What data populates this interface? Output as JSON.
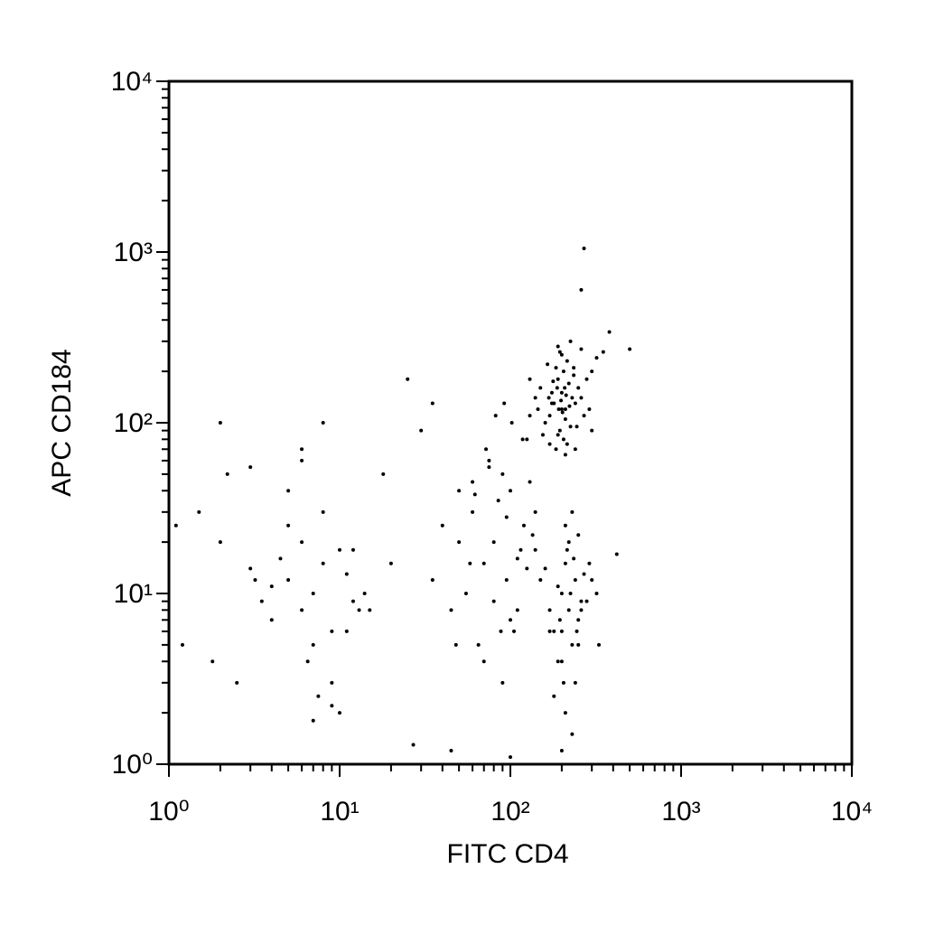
{
  "chart_data": {
    "type": "scatter",
    "x_label": "FITC CD4",
    "y_label": "APC CD184",
    "xscale": "log",
    "yscale": "log",
    "xlim": [
      1,
      10000
    ],
    "ylim": [
      1,
      10000
    ],
    "xticks": [
      {
        "value": 1,
        "label": "10⁰"
      },
      {
        "value": 10,
        "label": "10¹"
      },
      {
        "value": 100,
        "label": "10²"
      },
      {
        "value": 1000,
        "label": "10³"
      },
      {
        "value": 10000,
        "label": "10⁴"
      }
    ],
    "yticks": [
      {
        "value": 1,
        "label": "10⁰"
      },
      {
        "value": 10,
        "label": "10¹"
      },
      {
        "value": 100,
        "label": "10²"
      },
      {
        "value": 1000,
        "label": "10³"
      },
      {
        "value": 10000,
        "label": "10⁴"
      }
    ],
    "minor_ticks": true,
    "color": "#000000",
    "x": [
      200,
      180,
      220,
      210,
      190,
      170,
      230,
      250,
      160,
      205,
      195,
      215,
      185,
      240,
      175,
      225,
      200,
      210,
      190,
      260,
      150,
      145,
      280,
      270,
      165,
      235,
      198,
      188,
      212,
      222,
      178,
      202,
      245,
      155,
      290,
      140,
      300,
      320,
      130,
      260,
      205,
      215,
      185,
      195,
      225,
      175,
      235,
      168,
      208,
      192,
      350,
      380,
      130,
      125,
      300,
      240,
      170,
      210,
      190,
      200,
      200,
      220,
      240,
      180,
      260,
      210,
      230,
      190,
      250,
      270,
      170,
      200,
      215,
      245,
      225,
      160,
      280,
      205,
      235,
      195,
      300,
      210,
      230,
      250,
      190,
      220,
      240,
      260,
      180,
      200,
      150,
      170,
      140,
      320,
      330,
      290,
      210,
      230,
      250,
      200,
      60,
      80,
      100,
      70,
      90,
      55,
      120,
      110,
      75,
      85,
      65,
      95,
      130,
      105,
      50,
      45,
      140,
      115,
      70,
      90,
      60,
      80,
      100,
      125,
      35,
      40,
      50,
      75,
      95,
      110,
      88,
      72,
      58,
      135,
      48,
      62,
      102,
      118,
      82,
      92,
      5,
      7,
      8,
      6,
      10,
      4,
      9,
      12,
      3,
      6,
      7,
      5,
      8,
      11,
      4,
      3.5,
      9,
      13,
      6.5,
      7.5,
      2,
      1.5,
      1.2,
      2.5,
      3,
      10,
      15,
      8,
      5,
      6,
      4.5,
      7,
      9,
      11,
      12,
      2.2,
      1.8,
      3.2,
      14,
      6,
      30,
      25,
      35,
      20,
      45,
      500,
      420,
      270,
      260,
      1.1,
      2,
      18,
      27,
      100
    ],
    "y": [
      150,
      130,
      170,
      120,
      180,
      110,
      140,
      160,
      100,
      200,
      90,
      230,
      210,
      130,
      150,
      95,
      250,
      105,
      85,
      140,
      160,
      120,
      180,
      110,
      220,
      190,
      135,
      160,
      145,
      125,
      175,
      115,
      95,
      85,
      120,
      140,
      200,
      240,
      110,
      270,
      80,
      75,
      70,
      260,
      300,
      130,
      210,
      140,
      160,
      120,
      260,
      340,
      180,
      80,
      90,
      70,
      75,
      65,
      280,
      120,
      10,
      8,
      12,
      6,
      9,
      15,
      5,
      11,
      7,
      13,
      8,
      4,
      18,
      6,
      10,
      14,
      9,
      3,
      16,
      7,
      12,
      2,
      1.5,
      5,
      4,
      20,
      3,
      8,
      2.5,
      1.2,
      12,
      6,
      18,
      10,
      5,
      15,
      25,
      30,
      22,
      6,
      30,
      20,
      40,
      15,
      50,
      10,
      25,
      8,
      60,
      35,
      5,
      12,
      45,
      6,
      20,
      8,
      30,
      18,
      4,
      3,
      45,
      9,
      7,
      14,
      12,
      25,
      40,
      55,
      28,
      16,
      6,
      70,
      15,
      22,
      5,
      38,
      100,
      80,
      110,
      130,
      12,
      10,
      15,
      8,
      18,
      11,
      6,
      9,
      14,
      20,
      5,
      25,
      30,
      13,
      7,
      9,
      3,
      8,
      4,
      2.5,
      20,
      30,
      5,
      3,
      55,
      2,
      8,
      100,
      40,
      60,
      16,
      1.8,
      2.2,
      6,
      18,
      50,
      4,
      12,
      10,
      70,
      90,
      180,
      130,
      15,
      1.2,
      270,
      17,
      1050,
      600,
      25,
      100,
      50,
      1.3,
      1.1
    ]
  }
}
